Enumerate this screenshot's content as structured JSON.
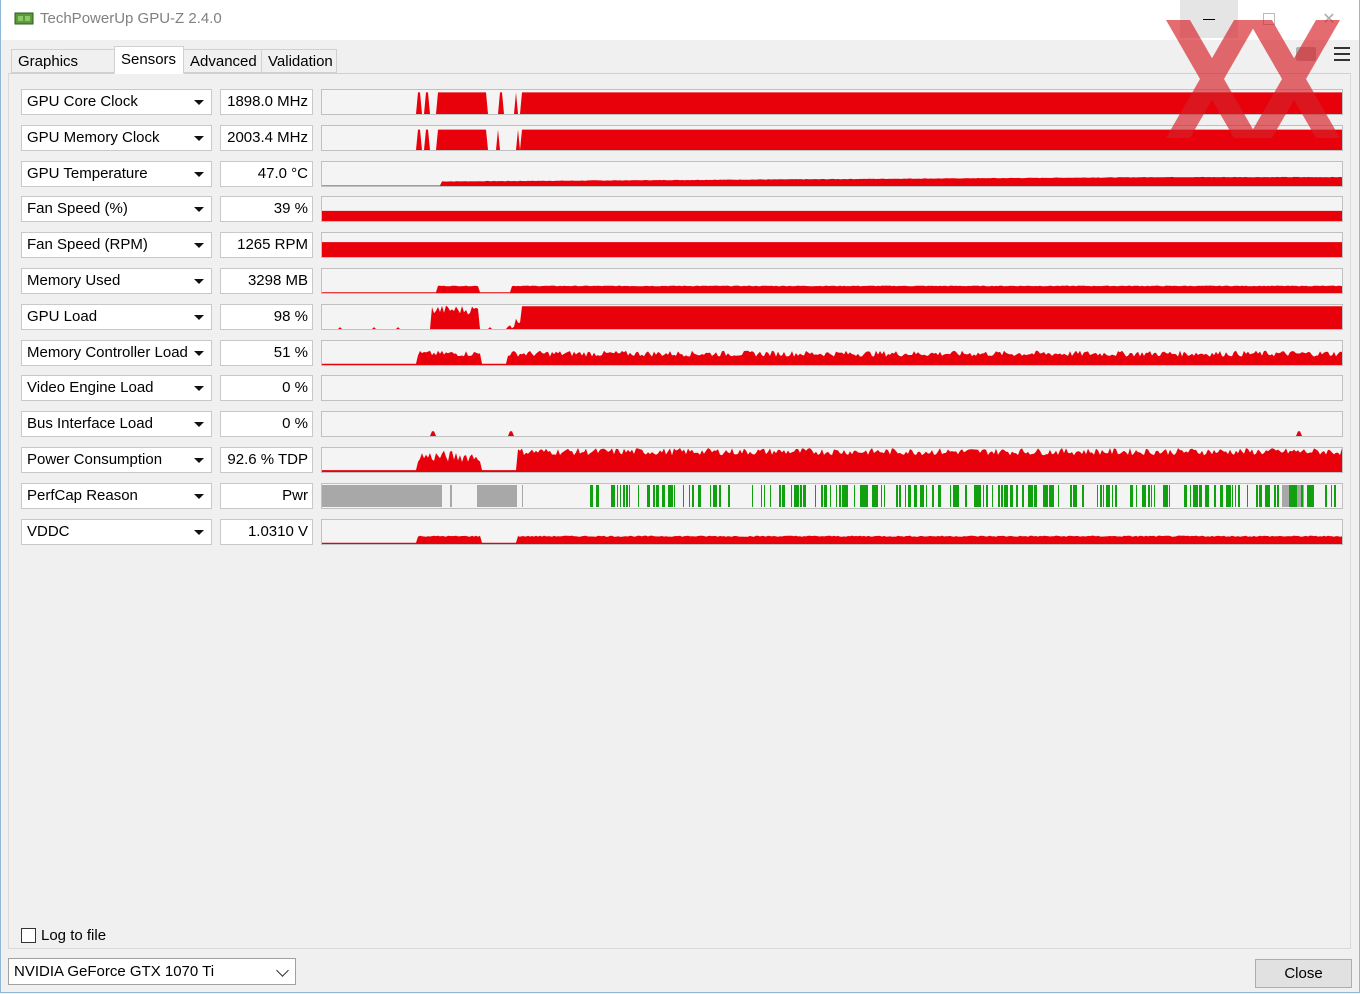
{
  "window": {
    "title": "TechPowerUp GPU-Z 2.4.0",
    "icon": "gpu-z-app-icon"
  },
  "tabs": [
    {
      "label": "Graphics Card",
      "active": false
    },
    {
      "label": "Sensors",
      "active": true
    },
    {
      "label": "Advanced",
      "active": false
    },
    {
      "label": "Validation",
      "active": false
    }
  ],
  "colors": {
    "graph_main": "#e8000a",
    "graph_perfcap_gray": "#a8a8a8",
    "graph_perfcap_green": "#10a010"
  },
  "sensors": [
    {
      "name": "GPU Core Clock",
      "value": "1898.0 MHz"
    },
    {
      "name": "GPU Memory Clock",
      "value": "2003.4 MHz"
    },
    {
      "name": "GPU Temperature",
      "value": "47.0 °C"
    },
    {
      "name": "Fan Speed (%)",
      "value": "39 %"
    },
    {
      "name": "Fan Speed (RPM)",
      "value": "1265 RPM"
    },
    {
      "name": "Memory Used",
      "value": "3298 MB"
    },
    {
      "name": "GPU Load",
      "value": "98 %"
    },
    {
      "name": "Memory Controller Load",
      "value": "51 %"
    },
    {
      "name": "Video Engine Load",
      "value": "0 %"
    },
    {
      "name": "Bus Interface Load",
      "value": "0 %"
    },
    {
      "name": "Power Consumption",
      "value": "92.6 % TDP"
    },
    {
      "name": "PerfCap Reason",
      "value": "Pwr"
    },
    {
      "name": "VDDC",
      "value": "1.0310 V"
    }
  ],
  "footer": {
    "log_label": "Log to file",
    "log_checked": false,
    "gpu_selected": "NVIDIA GeForce GTX 1070 Ti",
    "close_label": "Close"
  }
}
